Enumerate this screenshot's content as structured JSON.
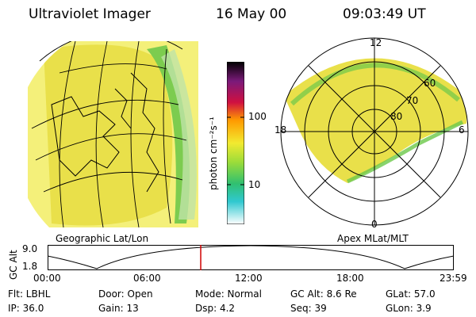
{
  "header": {
    "instrument": "Ultraviolet Imager",
    "date": "16 May 00",
    "time": "09:03:49 UT"
  },
  "colorbar": {
    "unit_label": "photon cm⁻²s⁻¹",
    "ticks": [
      "100",
      "10"
    ]
  },
  "polar_plot": {
    "mlt_labels": {
      "top": "12",
      "left": "18",
      "right": "6",
      "bottom": "0"
    },
    "lat_labels": [
      "60",
      "70",
      "80"
    ]
  },
  "map_labels": {
    "left": "Geographic Lat/Lon",
    "right": "Apex MLat/MLT"
  },
  "altitude_strip": {
    "axis_label": "GC Alt",
    "ticks": [
      "9.0",
      "1.8"
    ],
    "time_ticks": [
      "00:00",
      "06:00",
      "12:00",
      "18:00",
      "23:59"
    ],
    "marker_fraction": 0.377
  },
  "status": {
    "filt": "Flt: LBHL",
    "door": "Door: Open",
    "mode": "Mode: Normal",
    "gc_alt": "GC Alt: 8.6 Re",
    "glat": "GLat:  57.0",
    "ip": "IP: 36.0",
    "gain": "Gain: 13",
    "dsp": "Dsp:     4.2",
    "seq": "Seq: 39",
    "glon": "GLon:   3.9"
  },
  "colors": {
    "background": "#ffffff",
    "aurora_fill": "#e7e24a",
    "aurora_edge": "#6cc84a",
    "marker": "#d00000"
  }
}
